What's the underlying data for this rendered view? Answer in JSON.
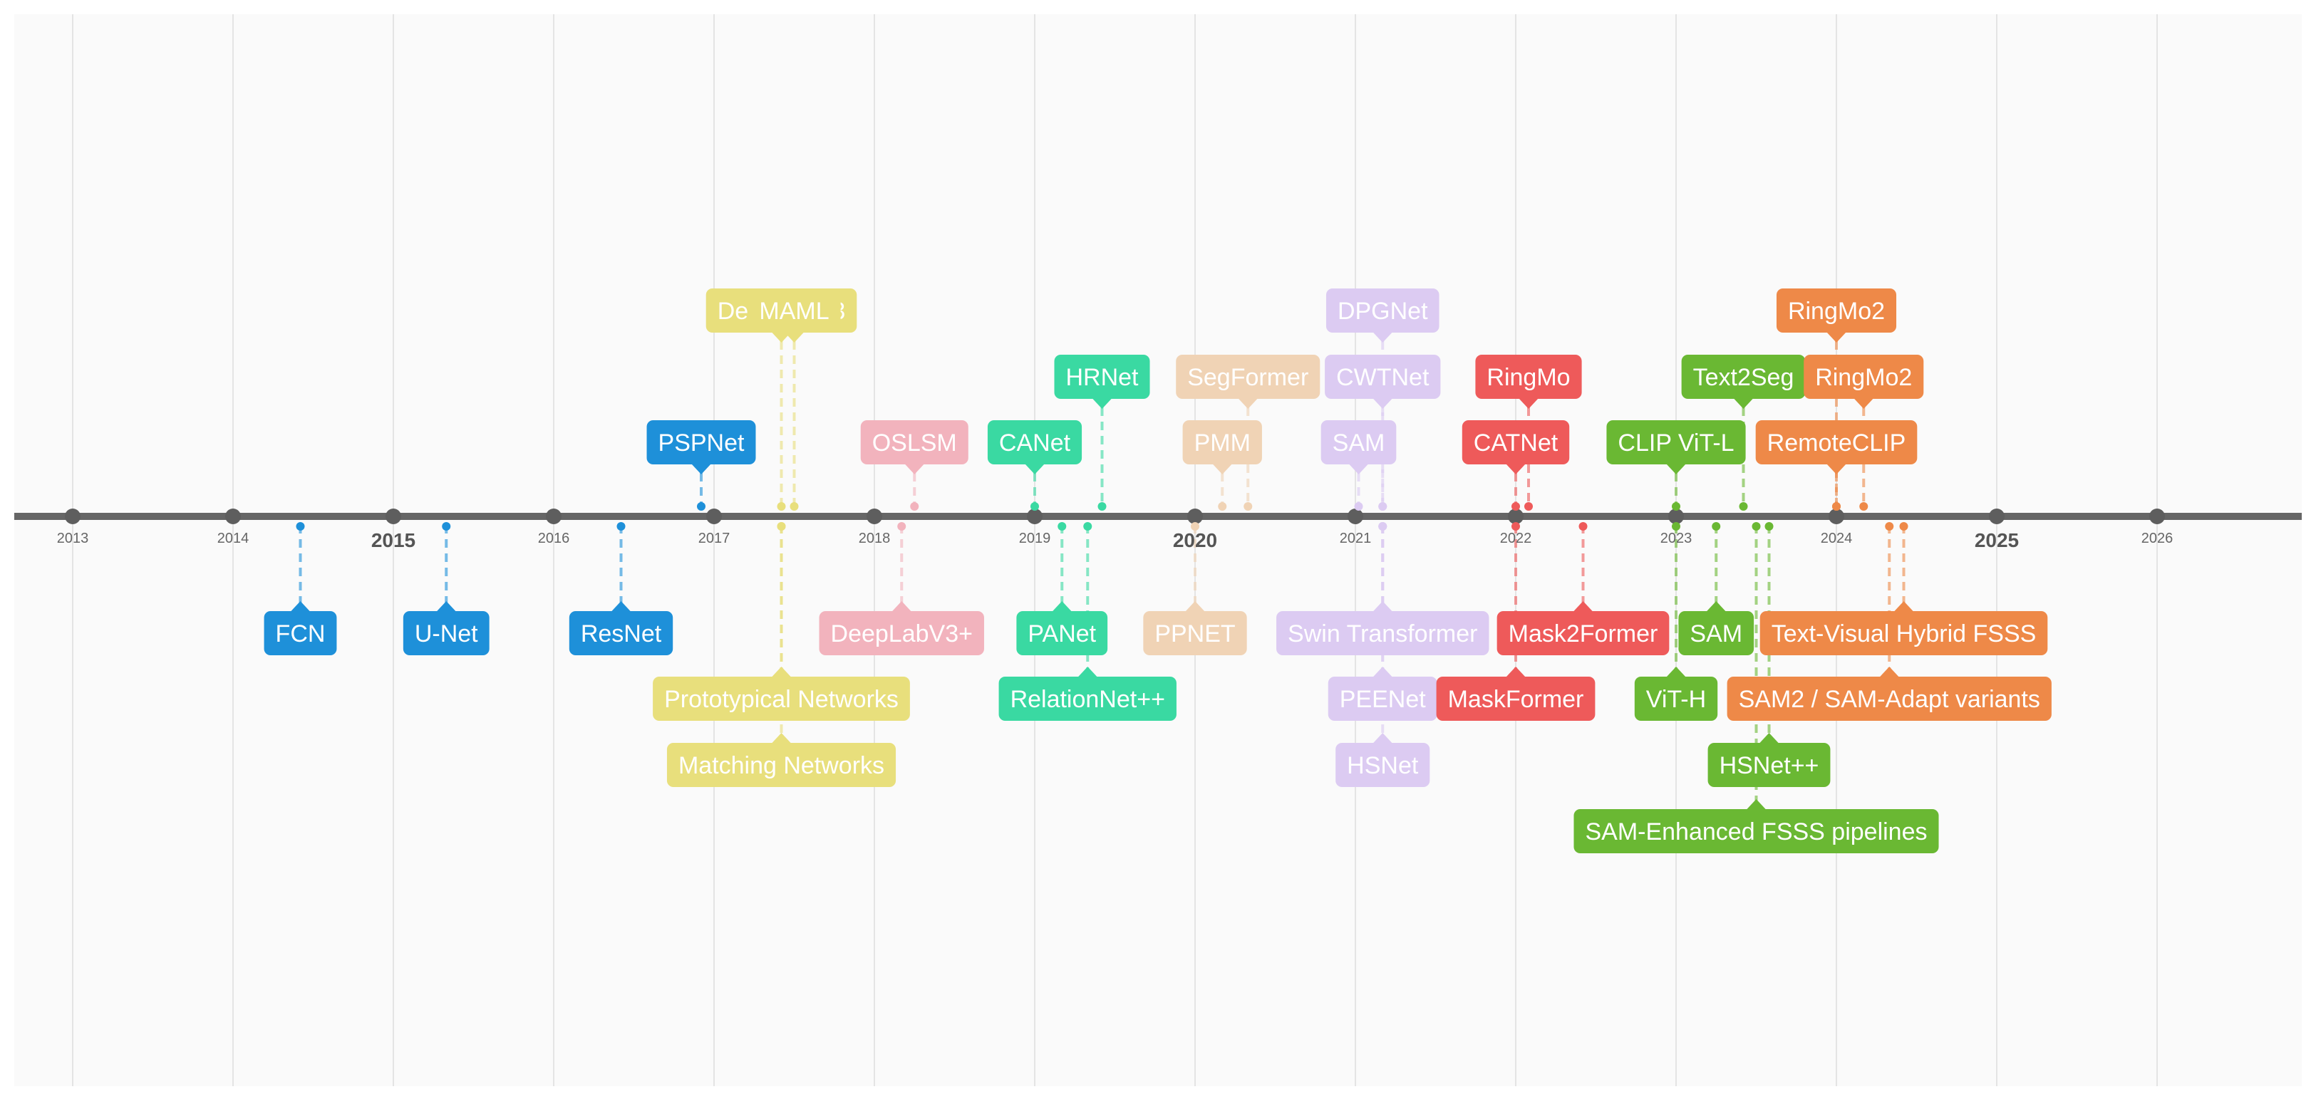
{
  "timeline": {
    "years": [
      {
        "label": "2013",
        "major": false
      },
      {
        "label": "2014",
        "major": false
      },
      {
        "label": "2015",
        "major": true
      },
      {
        "label": "2016",
        "major": false
      },
      {
        "label": "2017",
        "major": false
      },
      {
        "label": "2018",
        "major": false
      },
      {
        "label": "2019",
        "major": false
      },
      {
        "label": "2020",
        "major": true
      },
      {
        "label": "2021",
        "major": false
      },
      {
        "label": "2022",
        "major": false
      },
      {
        "label": "2023",
        "major": false
      },
      {
        "label": "2024",
        "major": false
      },
      {
        "label": "2025",
        "major": true
      },
      {
        "label": "2026",
        "major": false
      }
    ],
    "items": [
      {
        "label": "FCN",
        "date": 2014.42,
        "side": "below",
        "level": 1,
        "color": "#1e90d9",
        "faded": false
      },
      {
        "label": "U-Net",
        "date": 2015.33,
        "side": "below",
        "level": 1,
        "color": "#1e90d9",
        "faded": false
      },
      {
        "label": "ResNet",
        "date": 2016.42,
        "side": "below",
        "level": 1,
        "color": "#1e90d9",
        "faded": false
      },
      {
        "label": "PSPNet",
        "date": 2016.92,
        "side": "above",
        "level": 1,
        "color": "#1e90d9",
        "faded": false
      },
      {
        "label": "DeepLabV3",
        "date": 2017.42,
        "side": "above",
        "level": 3,
        "color": "#e8df7c",
        "faded": false
      },
      {
        "label": "MAML",
        "date": 2017.5,
        "side": "above",
        "level": 4,
        "color": "#e8df7c",
        "faded": false
      },
      {
        "label": "Prototypical Networks",
        "date": 2017.42,
        "side": "below",
        "level": 2,
        "color": "#e8df7c",
        "faded": false
      },
      {
        "label": "Matching Networks",
        "date": 2017.42,
        "side": "below",
        "level": 3,
        "color": "#e8df7c",
        "faded": false
      },
      {
        "label": "OSLSM",
        "date": 2018.25,
        "side": "above",
        "level": 1,
        "color": "#f2b3bd",
        "faded": false
      },
      {
        "label": "DeepLabV3+",
        "date": 2018.17,
        "side": "below",
        "level": 1,
        "color": "#f2b3bd",
        "faded": false
      },
      {
        "label": "CANet",
        "date": 2019.0,
        "side": "above",
        "level": 1,
        "color": "#3ad9a2",
        "faded": false
      },
      {
        "label": "HRNet",
        "date": 2019.42,
        "side": "above",
        "level": 2,
        "color": "#3ad9a2",
        "faded": false
      },
      {
        "label": "PANet",
        "date": 2019.17,
        "side": "below",
        "level": 1,
        "color": "#3ad9a2",
        "faded": false
      },
      {
        "label": "RelationNet++",
        "date": 2019.33,
        "side": "below",
        "level": 2,
        "color": "#3ad9a2",
        "faded": false
      },
      {
        "label": "PMM",
        "date": 2020.17,
        "side": "above",
        "level": 1,
        "color": "#f0d3b5",
        "faded": false
      },
      {
        "label": "SegFormer",
        "date": 2020.33,
        "side": "above",
        "level": 2,
        "color": "#f0d3b5",
        "faded": false
      },
      {
        "label": "PPNET",
        "date": 2020.0,
        "side": "below",
        "level": 1,
        "color": "#f0d3b5",
        "faded": false
      },
      {
        "label": "SAM",
        "date": 2021.02,
        "side": "above",
        "level": 1,
        "color": "#dccbf2",
        "faded": false
      },
      {
        "label": "CWTNet",
        "date": 2021.17,
        "side": "above",
        "level": 2,
        "color": "#dccbf2",
        "faded": false
      },
      {
        "label": "DPGNet",
        "date": 2021.17,
        "side": "above",
        "level": 3,
        "color": "#dccbf2",
        "faded": false
      },
      {
        "label": "Swin Transformer",
        "date": 2021.17,
        "side": "below",
        "level": 1,
        "color": "#dccbf2",
        "faded": false
      },
      {
        "label": "PEENet",
        "date": 2021.17,
        "side": "below",
        "level": 2,
        "color": "#dccbf2",
        "faded": false
      },
      {
        "label": "HSNet",
        "date": 2021.17,
        "side": "below",
        "level": 3,
        "color": "#dccbf2",
        "faded": false
      },
      {
        "label": "CATNet",
        "date": 2022.0,
        "side": "above",
        "level": 1,
        "color": "#ee5a5a",
        "faded": false
      },
      {
        "label": "RingMo",
        "date": 2022.08,
        "side": "above",
        "level": 2,
        "color": "#ee5a5a",
        "faded": false
      },
      {
        "label": "Mask2Former",
        "date": 2022.42,
        "side": "below",
        "level": 1,
        "color": "#ee5a5a",
        "faded": false
      },
      {
        "label": "MaskFormer",
        "date": 2022.0,
        "side": "below",
        "level": 2,
        "color": "#ee5a5a",
        "faded": false
      },
      {
        "label": "CLIP ViT-L",
        "date": 2023.0,
        "side": "above",
        "level": 1,
        "color": "#6ab833",
        "faded": false
      },
      {
        "label": "Text2Seg",
        "date": 2023.42,
        "side": "above",
        "level": 2,
        "color": "#6ab833",
        "faded": false
      },
      {
        "label": "SAM",
        "date": 2023.25,
        "side": "below",
        "level": 1,
        "color": "#6ab833",
        "faded": false
      },
      {
        "label": "ViT-H",
        "date": 2023.0,
        "side": "below",
        "level": 2,
        "color": "#6ab833",
        "faded": false
      },
      {
        "label": "HSNet++",
        "date": 2023.58,
        "side": "below",
        "level": 3,
        "color": "#6ab833",
        "faded": false
      },
      {
        "label": "SAM-Enhanced FSSS pipelines",
        "date": 2023.5,
        "side": "below",
        "level": 4,
        "color": "#6ab833",
        "faded": false
      },
      {
        "label": "RemoteCLIP",
        "date": 2024.0,
        "side": "above",
        "level": 1,
        "color": "#ee8948",
        "faded": false
      },
      {
        "label": "RingMo2",
        "date": 2024.17,
        "side": "above",
        "level": 2,
        "color": "#ee8948",
        "faded": false
      },
      {
        "label": "RingMo2",
        "date": 2024.0,
        "side": "above",
        "level": 3,
        "color": "#ee8948",
        "faded": false
      },
      {
        "label": "Text-Visual Hybrid FSSS",
        "date": 2024.42,
        "side": "below",
        "level": 1,
        "color": "#ee8948",
        "faded": false
      },
      {
        "label": "SAM2 / SAM-Adapt variants",
        "date": 2024.33,
        "side": "below",
        "level": 2,
        "color": "#ee8948",
        "faded": false
      }
    ]
  }
}
